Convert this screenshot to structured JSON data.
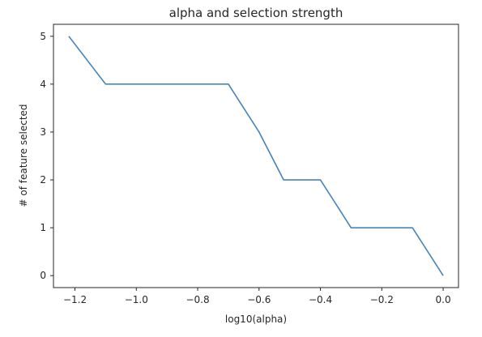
{
  "chart_data": {
    "type": "line",
    "title": "alpha and selection strength",
    "xlabel": "log10(alpha)",
    "ylabel": "# of feature selected",
    "xlim": [
      -1.27,
      0.05
    ],
    "ylim": [
      -0.25,
      5.25
    ],
    "xticks": [
      -1.2,
      -1.0,
      -0.8,
      -0.6,
      -0.4,
      -0.2,
      0.0
    ],
    "xtick_labels": [
      "−1.2",
      "−1.0",
      "−0.8",
      "−0.6",
      "−0.4",
      "−0.2",
      "0.0"
    ],
    "yticks": [
      0,
      1,
      2,
      3,
      4,
      5
    ],
    "ytick_labels": [
      "0",
      "1",
      "2",
      "3",
      "4",
      "5"
    ],
    "grid": false,
    "series": [
      {
        "color": "#4a84b6",
        "x": [
          -1.22,
          -1.1,
          -0.7,
          -0.6,
          -0.52,
          -0.4,
          -0.3,
          -0.1,
          0.0
        ],
        "y": [
          5,
          4,
          4,
          3,
          2,
          2,
          1,
          1,
          0
        ]
      }
    ]
  }
}
